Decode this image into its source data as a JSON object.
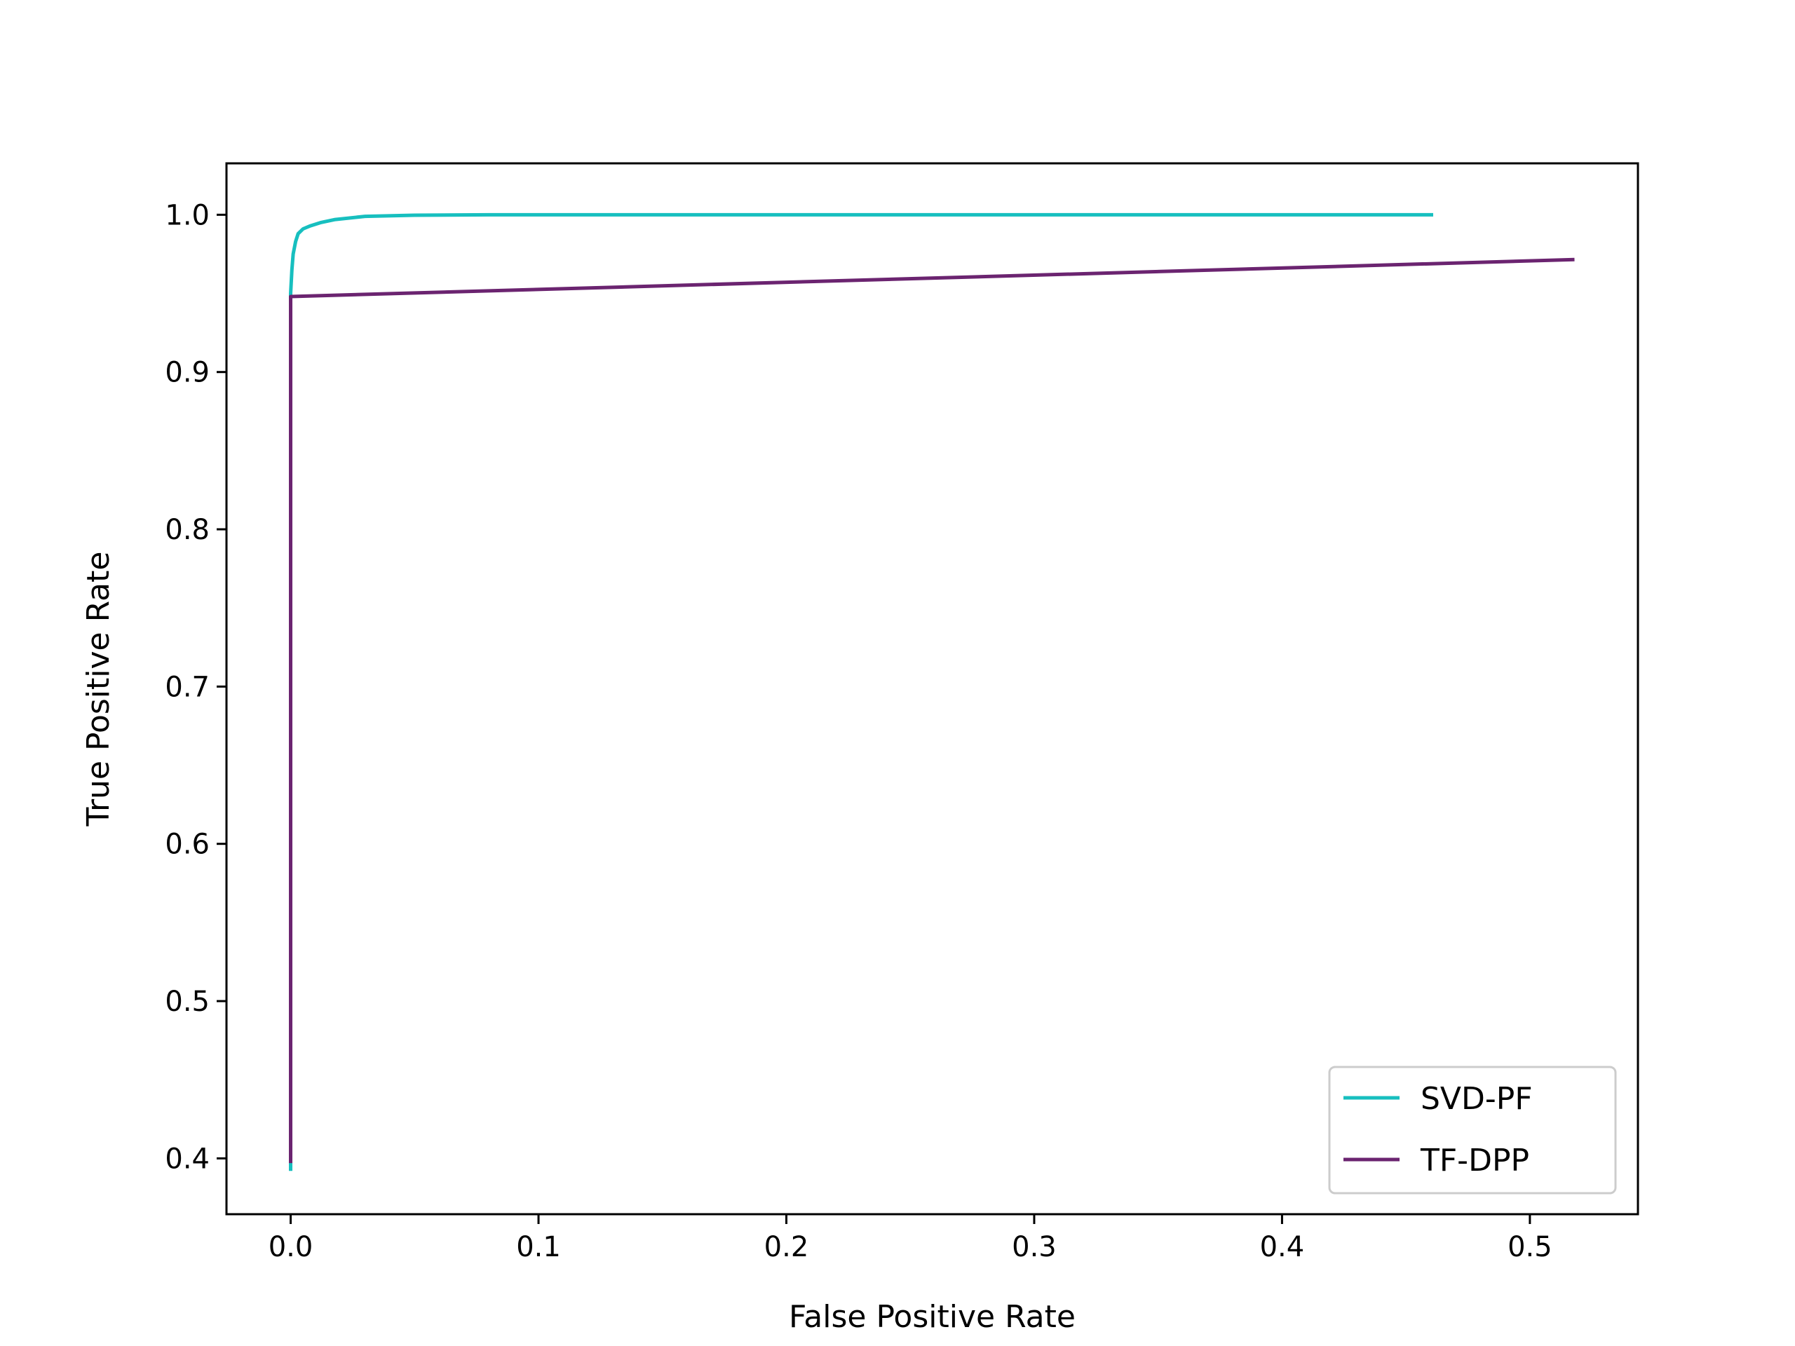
{
  "chart_data": {
    "type": "line",
    "title": "",
    "xlabel": "False Positive Rate",
    "ylabel": "True Positive Rate",
    "xlim": [
      -0.0259,
      0.5436
    ],
    "ylim": [
      0.3645,
      1.0327
    ],
    "xticks": [
      0.0,
      0.1,
      0.2,
      0.3,
      0.4,
      0.5
    ],
    "xtick_labels": [
      "0.0",
      "0.1",
      "0.2",
      "0.3",
      "0.4",
      "0.5"
    ],
    "yticks": [
      0.4,
      0.5,
      0.6,
      0.7,
      0.8,
      0.9,
      1.0
    ],
    "ytick_labels": [
      "0.4",
      "0.5",
      "0.6",
      "0.7",
      "0.8",
      "0.9",
      "1.0"
    ],
    "grid": false,
    "legend_position": "lower right",
    "series": [
      {
        "name": "SVD-PF",
        "color": "#17bfbf",
        "x": [
          0.0,
          0.0,
          0.0,
          0.0005,
          0.001,
          0.002,
          0.003,
          0.005,
          0.008,
          0.012,
          0.018,
          0.03,
          0.05,
          0.08,
          0.15,
          0.25,
          0.35,
          0.461
        ],
        "y": [
          0.392,
          0.4,
          0.95,
          0.965,
          0.975,
          0.983,
          0.988,
          0.991,
          0.993,
          0.995,
          0.997,
          0.999,
          0.9997,
          1.0,
          1.0,
          1.0,
          1.0,
          1.0
        ]
      },
      {
        "name": "TF-DPP",
        "color": "#6b2470",
        "x": [
          0.0,
          0.0,
          0.518
        ],
        "y": [
          0.397,
          0.948,
          0.9715
        ]
      }
    ]
  }
}
